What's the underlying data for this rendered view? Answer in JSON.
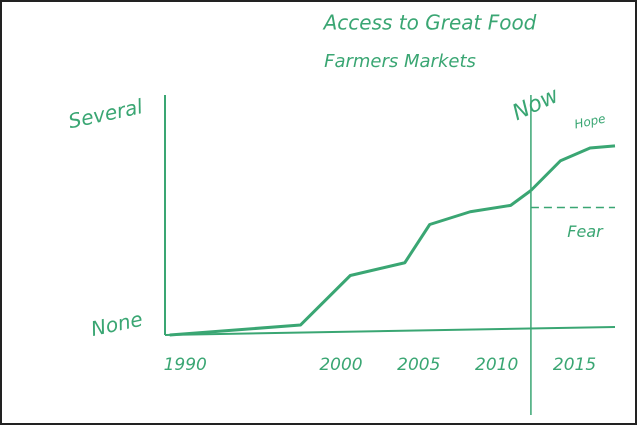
{
  "chart_data": {
    "type": "line",
    "title": "Access to Great Food",
    "subtitle": "Farmers Markets",
    "color": "#3aa673",
    "x": [
      1989.0,
      1997.4,
      2000.6,
      2004.1,
      2005.7,
      2008.3,
      2010.9,
      2012.2
    ],
    "values": [
      0,
      0.47,
      2.8,
      3.4,
      5.2,
      5.8,
      6.1,
      6.8
    ],
    "xlim": [
      1988.7,
      2017.6
    ],
    "xticks": [
      1990,
      2000,
      2005,
      2010,
      2015
    ],
    "ylim": [
      0,
      12
    ],
    "yticks": [
      {
        "value": 0,
        "label": "None"
      },
      {
        "value": 10,
        "label": "Several"
      }
    ],
    "grid": false,
    "now": {
      "label": "Now",
      "x": 2012.2
    },
    "hope": {
      "label": "Hope",
      "x": [
        2012.2,
        2014.1,
        2016.0,
        2017.6
      ],
      "values": [
        6.8,
        8.2,
        8.8,
        8.9
      ]
    },
    "fear": {
      "label": "Fear",
      "value": 6.0
    }
  }
}
